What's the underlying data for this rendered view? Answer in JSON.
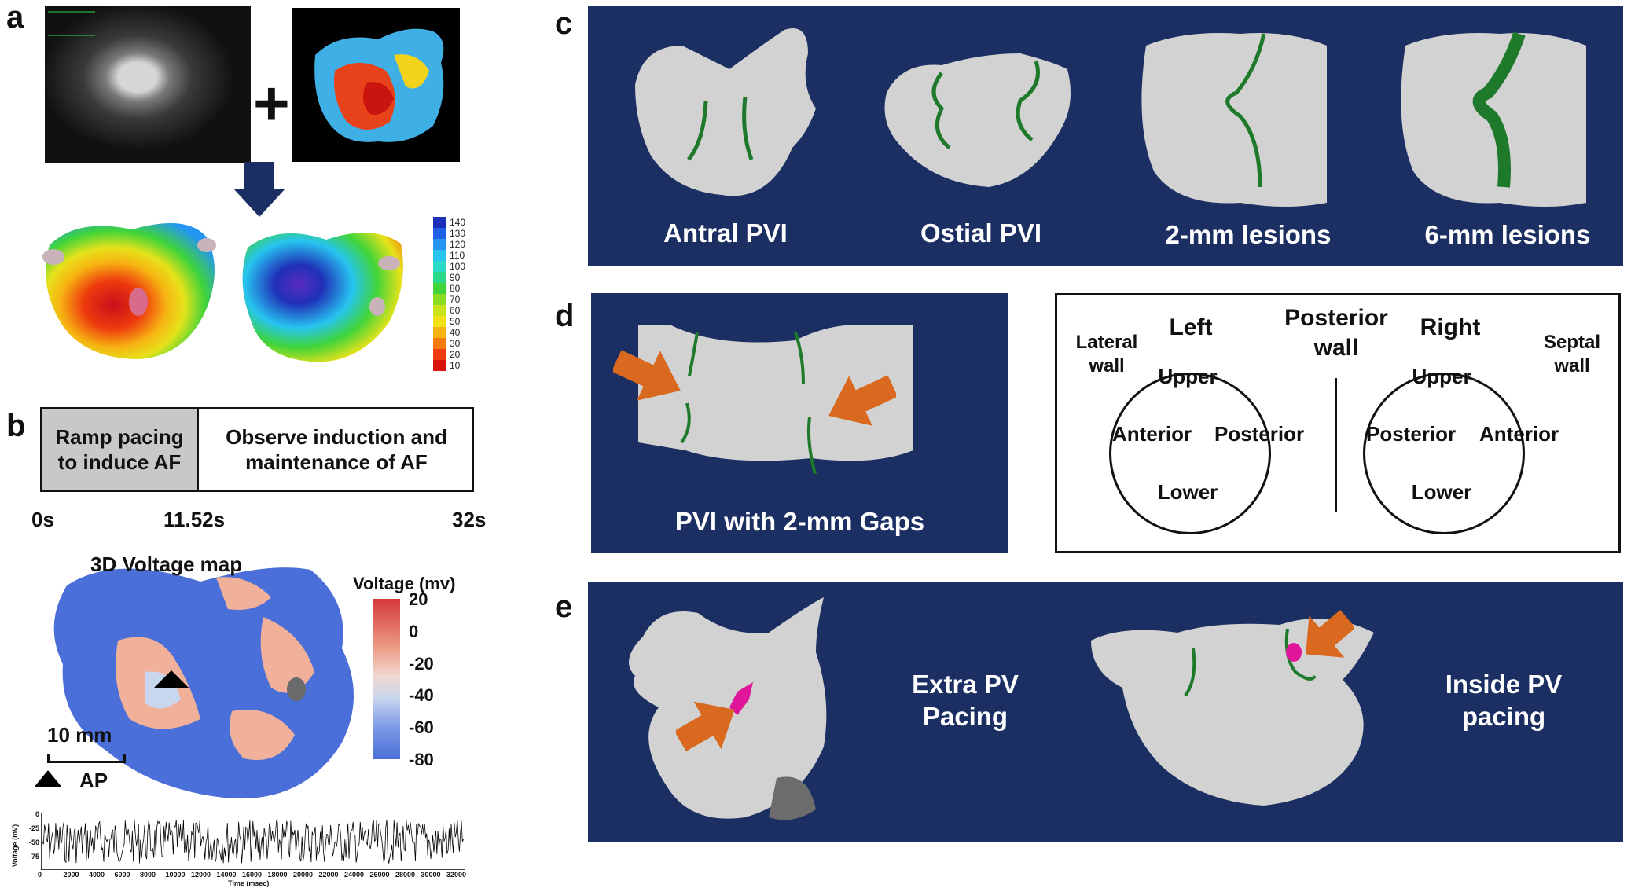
{
  "panels": {
    "a": {
      "letter": "a",
      "colorbar_ticks": [
        "140",
        "130",
        "120",
        "110",
        "100",
        "90",
        "80",
        "70",
        "60",
        "50",
        "40",
        "30",
        "20",
        "10"
      ],
      "colorbar_colors": [
        "#1b2fb8",
        "#2060e8",
        "#2496f2",
        "#27c4f0",
        "#2ad9c8",
        "#2bd88a",
        "#3fd43a",
        "#8bdc22",
        "#c9e21a",
        "#f2e215",
        "#f7b312",
        "#f57a10",
        "#ee3a0e",
        "#d8130c"
      ]
    },
    "b": {
      "letter": "b",
      "protocol_box1": "Ramp pacing to induce AF",
      "protocol_box2": "Observe induction and maintenance of AF",
      "timeline": {
        "t0": "0s",
        "t1": "11.52s",
        "t2": "32s"
      },
      "map_title": "3D Voltage map",
      "legend_title": "Voltage (mv)",
      "legend_ticks": [
        "20",
        "0",
        "-20",
        "-40",
        "-60",
        "-80"
      ],
      "scale_label": "10 mm",
      "marker_label": "AP",
      "trace": {
        "ylabel": "Voltage (mV)",
        "xlabel": "Time (msec)",
        "yticks": [
          "0",
          "-25",
          "-50",
          "-75"
        ],
        "xticks": [
          "0",
          "2000",
          "4000",
          "6000",
          "8000",
          "10000",
          "12000",
          "14000",
          "16000",
          "18000",
          "20000",
          "22000",
          "24000",
          "26000",
          "28000",
          "30000",
          "32000"
        ]
      }
    },
    "c": {
      "letter": "c",
      "labels": [
        "Antral PVI",
        "Ostial PVI",
        "2-mm lesions",
        "6-mm lesions"
      ]
    },
    "d": {
      "letter": "d",
      "image_label": "PVI with 2-mm Gaps",
      "diagram": {
        "left_title": "Left",
        "right_title": "Right",
        "posterior_wall": "Posterior wall",
        "lateral_wall": "Lateral wall",
        "septal_wall": "Septal wall",
        "left_circle": {
          "top": "Upper",
          "left": "Anterior",
          "right": "Posterior",
          "bottom": "Lower"
        },
        "right_circle": {
          "top": "Upper",
          "left": "Posterior",
          "right": "Anterior",
          "bottom": "Lower"
        }
      }
    },
    "e": {
      "letter": "e",
      "label_extra": "Extra PV Pacing",
      "label_inside": "Inside PV pacing"
    }
  },
  "colors": {
    "navy": "#1c2f63",
    "arrow_orange": "#d9691f",
    "lesion_green": "#1e7a2a",
    "pacing_magenta": "#e0169a",
    "protocol_gray": "#c8c8c8"
  }
}
